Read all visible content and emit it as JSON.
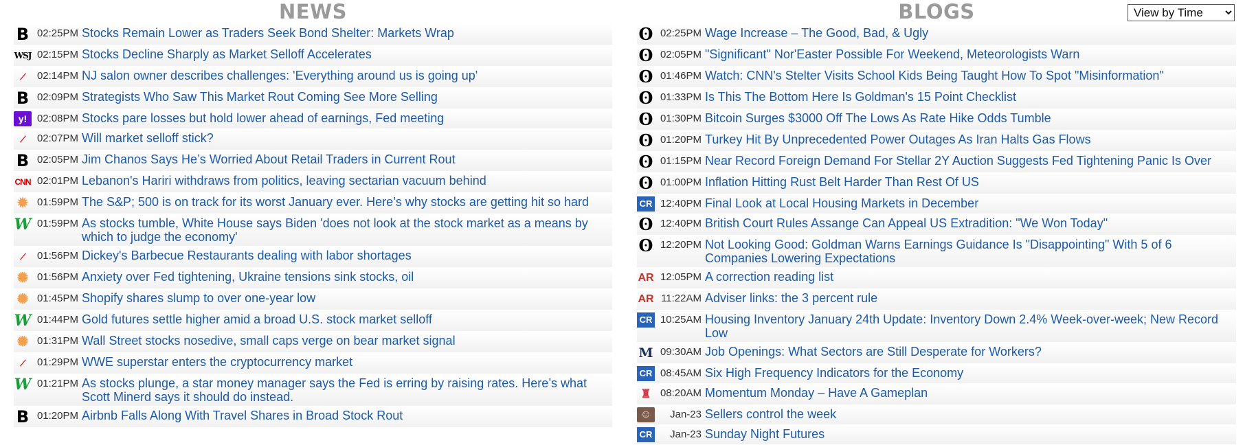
{
  "news": {
    "title": "NEWS",
    "items": [
      {
        "icon": "bloomberg-icon",
        "glyph": "B",
        "cls": "ic-b",
        "time": "02:25PM",
        "headline": "Stocks Remain Lower as Traders Seek Bond Shelter: Markets Wrap"
      },
      {
        "icon": "wsj-icon",
        "glyph": "WSJ",
        "cls": "ic-wsj",
        "time": "02:15PM",
        "headline": "Stocks Decline Sharply as Market Selloff Accelerates"
      },
      {
        "icon": "fox-business-icon",
        "glyph": "⟋",
        "cls": "ic-cnn",
        "time": "02:14PM",
        "headline": "NJ salon owner describes challenges: 'Everything around us is going up'"
      },
      {
        "icon": "bloomberg-icon",
        "glyph": "B",
        "cls": "ic-b",
        "time": "02:09PM",
        "headline": "Strategists Who Saw This Market Rout Coming See More Selling"
      },
      {
        "icon": "yahoo-icon",
        "glyph": "y!",
        "cls": "ic-yahoo",
        "time": "02:08PM",
        "headline": "Stocks pare losses but hold lower ahead of earnings, Fed meeting"
      },
      {
        "icon": "fox-business-icon",
        "glyph": "⟋",
        "cls": "ic-cnn",
        "time": "02:07PM",
        "headline": "Will market selloff stick?"
      },
      {
        "icon": "bloomberg-icon",
        "glyph": "B",
        "cls": "ic-b",
        "time": "02:05PM",
        "headline": "Jim Chanos Says He’s Worried About Retail Traders in Current Rout"
      },
      {
        "icon": "cnn-icon",
        "glyph": "CNN",
        "cls": "ic-cnn",
        "time": "02:01PM",
        "headline": "Lebanon's Hariri withdraws from politics, leaving sectarian vacuum behind"
      },
      {
        "icon": "cnbc-icon",
        "glyph": "✹",
        "cls": "ic-sun",
        "time": "01:59PM",
        "headline": "The S&P; 500 is on track for its worst January ever. Here’s why stocks are getting hit so hard"
      },
      {
        "icon": "marketwatch-icon",
        "glyph": "W",
        "cls": "ic-w",
        "time": "01:59PM",
        "headline": "As stocks tumble, White House says Biden 'does not look at the stock market as a means by which to judge the economy'"
      },
      {
        "icon": "fox-business-icon",
        "glyph": "⟋",
        "cls": "ic-cnn",
        "time": "01:56PM",
        "headline": "Dickey's Barbecue Restaurants dealing with labor shortages"
      },
      {
        "icon": "reuters-icon",
        "glyph": "✺",
        "cls": "ic-sun",
        "time": "01:56PM",
        "headline": "Anxiety over Fed tightening, Ukraine tensions sink stocks, oil"
      },
      {
        "icon": "reuters-icon",
        "glyph": "✺",
        "cls": "ic-sun",
        "time": "01:45PM",
        "headline": "Shopify shares slump to over one-year low"
      },
      {
        "icon": "marketwatch-icon",
        "glyph": "W",
        "cls": "ic-w",
        "time": "01:44PM",
        "headline": "Gold futures settle higher amid a broad U.S. stock market selloff"
      },
      {
        "icon": "reuters-icon",
        "glyph": "✺",
        "cls": "ic-sun",
        "time": "01:31PM",
        "headline": "Wall Street stocks nosedive, small caps verge on bear market signal"
      },
      {
        "icon": "fox-business-icon",
        "glyph": "⟋",
        "cls": "ic-cnn",
        "time": "01:29PM",
        "headline": "WWE superstar enters the cryptocurrency market"
      },
      {
        "icon": "marketwatch-icon",
        "glyph": "W",
        "cls": "ic-w",
        "time": "01:21PM",
        "headline": "As stocks plunge, a star money manager says the Fed is erring by raising rates. Here’s what Scott Minerd says it should do instead."
      },
      {
        "icon": "bloomberg-icon",
        "glyph": "B",
        "cls": "ic-b",
        "time": "01:20PM",
        "headline": "Airbnb Falls Along With Travel Shares in Broad Stock Rout"
      }
    ]
  },
  "blogs": {
    "title": "BLOGS",
    "view_select": "View by Time",
    "items": [
      {
        "icon": "zerohedge-icon",
        "glyph": "ʘ",
        "cls": "ic-zh",
        "time": "02:25PM",
        "headline": "Wage Increase – The Good, Bad, & Ugly"
      },
      {
        "icon": "zerohedge-icon",
        "glyph": "ʘ",
        "cls": "ic-zh",
        "time": "02:05PM",
        "headline": "\"Significant\" Nor'Easter Possible For Weekend, Meteorologists Warn"
      },
      {
        "icon": "zerohedge-icon",
        "glyph": "ʘ",
        "cls": "ic-zh",
        "time": "01:46PM",
        "headline": "Watch: CNN's Stelter Visits School Kids Being Taught How To Spot \"Misinformation\""
      },
      {
        "icon": "zerohedge-icon",
        "glyph": "ʘ",
        "cls": "ic-zh",
        "time": "01:33PM",
        "headline": "Is This The Bottom Here Is Goldman's 15 Point Checklist"
      },
      {
        "icon": "zerohedge-icon",
        "glyph": "ʘ",
        "cls": "ic-zh",
        "time": "01:30PM",
        "headline": "Bitcoin Surges $3000 Off The Lows As Rate Hike Odds Tumble"
      },
      {
        "icon": "zerohedge-icon",
        "glyph": "ʘ",
        "cls": "ic-zh",
        "time": "01:20PM",
        "headline": "Turkey Hit By Unprecedented Power Outages As Iran Halts Gas Flows"
      },
      {
        "icon": "zerohedge-icon",
        "glyph": "ʘ",
        "cls": "ic-zh",
        "time": "01:15PM",
        "headline": "Near Record Foreign Demand For Stellar 2Y Auction Suggests Fed Tightening Panic Is Over"
      },
      {
        "icon": "zerohedge-icon",
        "glyph": "ʘ",
        "cls": "ic-zh",
        "time": "01:00PM",
        "headline": "Inflation Hitting Rust Belt Harder Than Rest Of US"
      },
      {
        "icon": "calculated-risk-icon",
        "glyph": "CR",
        "cls": "ic-cr",
        "time": "12:40PM",
        "headline": "Final Look at Local Housing Markets in December"
      },
      {
        "icon": "zerohedge-icon",
        "glyph": "ʘ",
        "cls": "ic-zh",
        "time": "12:40PM",
        "headline": "British Court Rules Assange Can Appeal US Extradition: \"We Won Today\""
      },
      {
        "icon": "zerohedge-icon",
        "glyph": "ʘ",
        "cls": "ic-zh",
        "time": "12:20PM",
        "headline": "Not Looking Good: Goldman Warns Earnings Guidance Is \"Disappointing\" With 5 of 6 Companies Lowering Expectations"
      },
      {
        "icon": "abnormal-returns-icon",
        "glyph": "AR",
        "cls": "ic-ar",
        "time": "12:05PM",
        "headline": "A correction reading list"
      },
      {
        "icon": "abnormal-returns-icon",
        "glyph": "AR",
        "cls": "ic-ar",
        "time": "11:22AM",
        "headline": "Adviser links: the 3 percent rule"
      },
      {
        "icon": "calculated-risk-icon",
        "glyph": "CR",
        "cls": "ic-cr",
        "time": "10:25AM",
        "headline": "Housing Inventory January 24th Update: Inventory Down 2.4% Week-over-week; New Record Low"
      },
      {
        "icon": "mish-icon",
        "glyph": "M",
        "cls": "ic-m",
        "time": "09:30AM",
        "headline": "Job Openings: What Sectors are Still Desperate for Workers?"
      },
      {
        "icon": "calculated-risk-icon",
        "glyph": "CR",
        "cls": "ic-cr",
        "time": "08:45AM",
        "headline": "Six High Frequency Indicators for the Economy"
      },
      {
        "icon": "rocket-icon",
        "glyph": "♜",
        "cls": "ic-rocket",
        "time": "08:20AM",
        "headline": "Momentum Monday – Have A Gameplan"
      },
      {
        "icon": "author-avatar-icon",
        "glyph": "☺",
        "cls": "ic-face",
        "time": "Jan-23",
        "headline": "Sellers control the week"
      },
      {
        "icon": "calculated-risk-icon",
        "glyph": "CR",
        "cls": "ic-cr",
        "time": "Jan-23",
        "headline": "Sunday Night Futures"
      }
    ]
  }
}
